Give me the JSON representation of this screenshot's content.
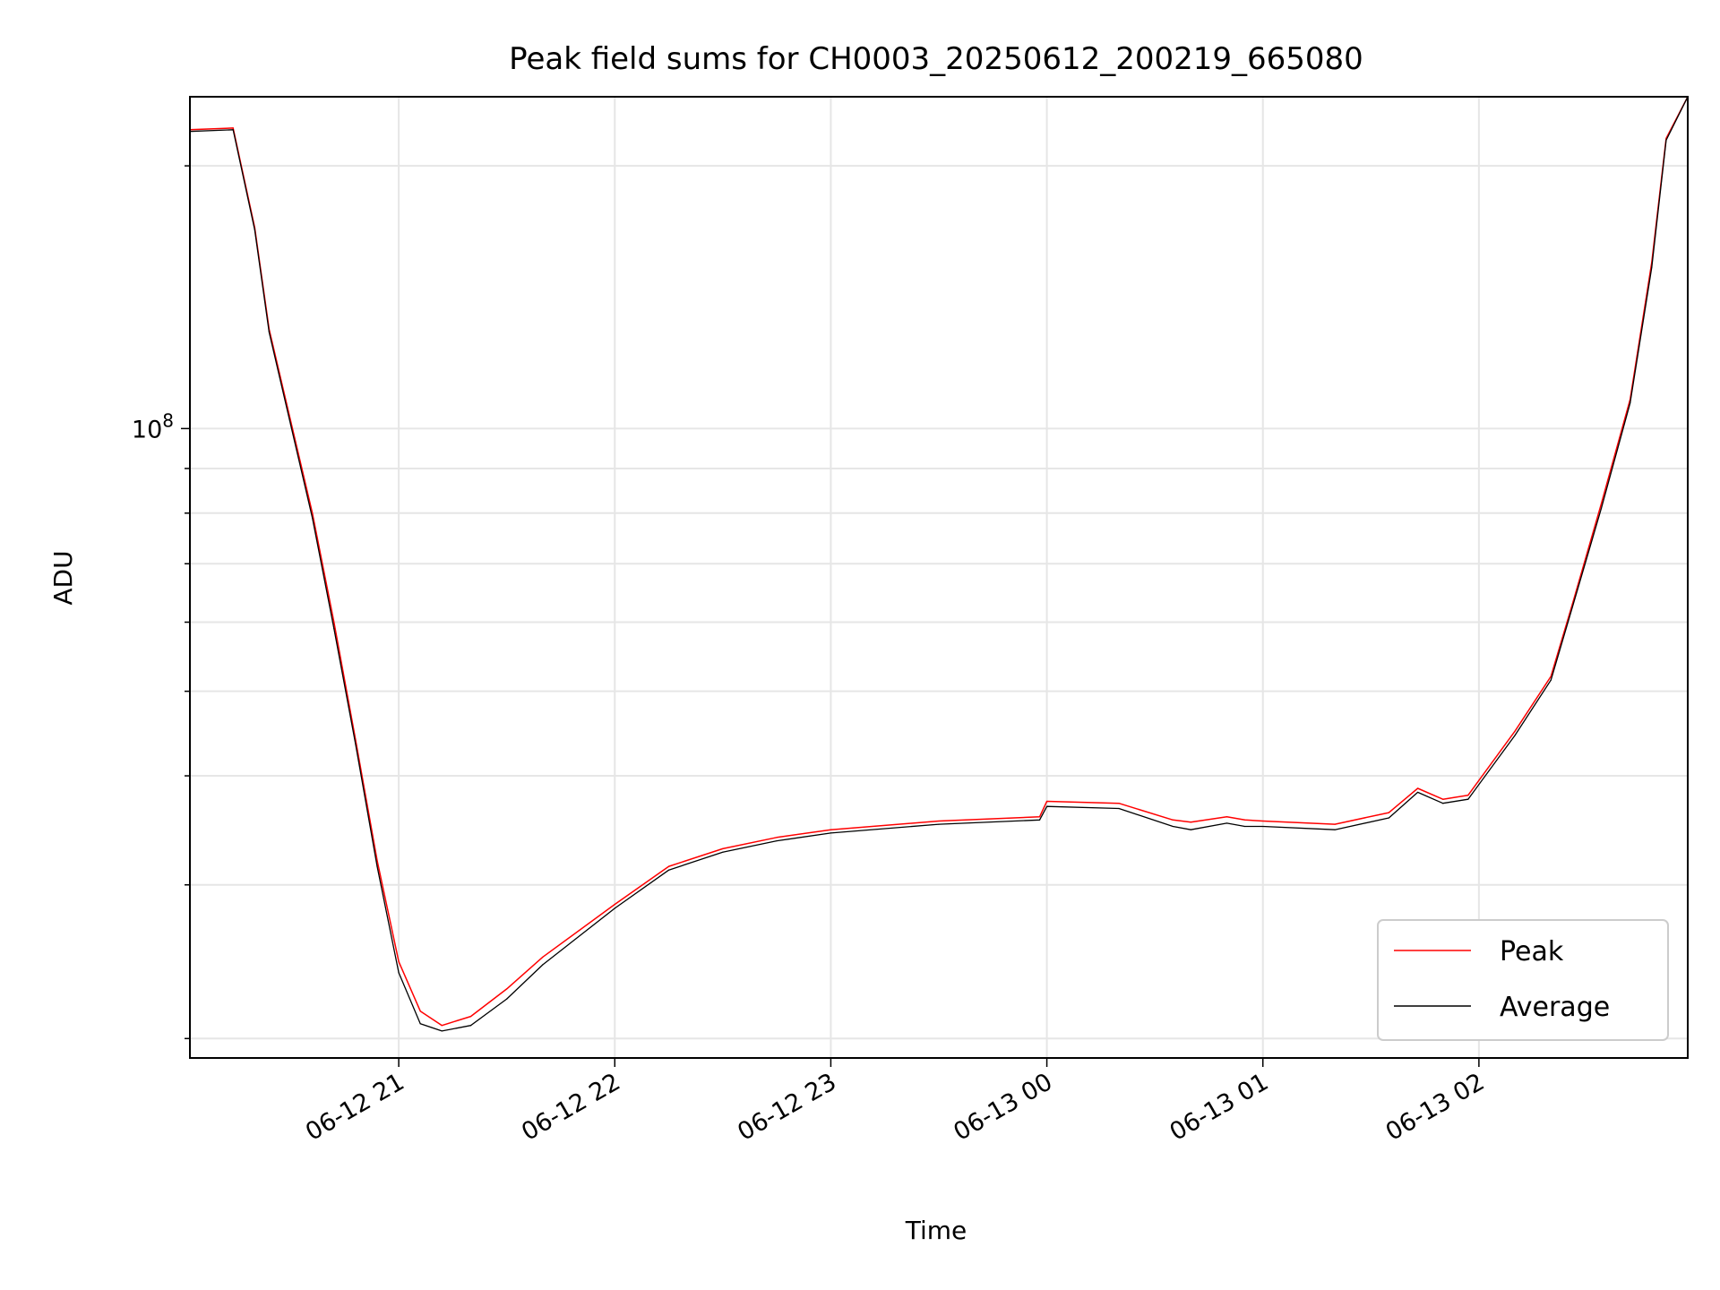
{
  "chart_data": {
    "type": "line",
    "title": "Peak field sums for CH0003_20250612_200219_665080",
    "xlabel": "Time",
    "ylabel": "ADU",
    "y_scale": "log",
    "ylim": [
      19000000,
      240000000
    ],
    "xlim": [
      "2025-06-12 20:02",
      "2025-06-13 02:58"
    ],
    "x_ticks": [
      {
        "value": "2025-06-12 21:00",
        "label": "06-12 21"
      },
      {
        "value": "2025-06-12 22:00",
        "label": "06-12 22"
      },
      {
        "value": "2025-06-12 23:00",
        "label": "06-12 23"
      },
      {
        "value": "2025-06-13 00:00",
        "label": "06-13 00"
      },
      {
        "value": "2025-06-13 01:00",
        "label": "06-13 01"
      },
      {
        "value": "2025-06-13 02:00",
        "label": "06-13 02"
      }
    ],
    "y_major_ticks": [
      {
        "value": 100000000,
        "base": "10",
        "exp": "8"
      }
    ],
    "y_minor_ticks": [
      20000000,
      30000000,
      40000000,
      50000000,
      60000000,
      70000000,
      80000000,
      90000000,
      200000000
    ],
    "grid": true,
    "legend_position": "lower right",
    "series": [
      {
        "name": "Peak",
        "color": "#ff0000",
        "x": [
          "2025-06-12 20:02",
          "2025-06-12 20:14",
          "2025-06-12 20:20",
          "2025-06-12 20:24",
          "2025-06-12 20:30",
          "2025-06-12 20:36",
          "2025-06-12 20:42",
          "2025-06-12 20:48",
          "2025-06-12 20:54",
          "2025-06-12 21:00",
          "2025-06-12 21:06",
          "2025-06-12 21:12",
          "2025-06-12 21:20",
          "2025-06-12 21:30",
          "2025-06-12 21:40",
          "2025-06-12 22:00",
          "2025-06-12 22:15",
          "2025-06-12 22:30",
          "2025-06-12 22:45",
          "2025-06-12 23:00",
          "2025-06-12 23:30",
          "2025-06-12 23:58",
          "2025-06-13 00:00",
          "2025-06-13 00:20",
          "2025-06-13 00:35",
          "2025-06-13 00:40",
          "2025-06-13 00:50",
          "2025-06-13 00:55",
          "2025-06-13 01:00",
          "2025-06-13 01:20",
          "2025-06-13 01:35",
          "2025-06-13 01:43",
          "2025-06-13 01:50",
          "2025-06-13 01:57",
          "2025-06-13 02:10",
          "2025-06-13 02:20",
          "2025-06-13 02:26",
          "2025-06-13 02:34",
          "2025-06-13 02:42",
          "2025-06-13 02:48",
          "2025-06-13 02:52",
          "2025-06-13 02:58"
        ],
        "y": [
          220000000,
          221000000,
          170000000,
          130000000,
          102000000,
          80000000,
          60000000,
          44000000,
          32000000,
          24500000,
          21500000,
          20700000,
          21200000,
          22800000,
          24800000,
          28500000,
          31500000,
          33000000,
          34000000,
          34700000,
          35500000,
          35900000,
          37400000,
          37200000,
          35600000,
          35400000,
          35900000,
          35600000,
          35500000,
          35200000,
          36300000,
          38700000,
          37600000,
          38000000,
          45000000,
          52000000,
          63000000,
          82000000,
          108000000,
          155000000,
          215000000,
          240000000
        ]
      },
      {
        "name": "Average",
        "color": "#000000",
        "x": [
          "2025-06-12 20:02",
          "2025-06-12 20:14",
          "2025-06-12 20:20",
          "2025-06-12 20:24",
          "2025-06-12 20:30",
          "2025-06-12 20:36",
          "2025-06-12 20:42",
          "2025-06-12 20:48",
          "2025-06-12 20:54",
          "2025-06-12 21:00",
          "2025-06-12 21:06",
          "2025-06-12 21:12",
          "2025-06-12 21:20",
          "2025-06-12 21:30",
          "2025-06-12 21:40",
          "2025-06-12 22:00",
          "2025-06-12 22:15",
          "2025-06-12 22:30",
          "2025-06-12 22:45",
          "2025-06-12 23:00",
          "2025-06-12 23:30",
          "2025-06-12 23:58",
          "2025-06-13 00:00",
          "2025-06-13 00:20",
          "2025-06-13 00:35",
          "2025-06-13 00:40",
          "2025-06-13 00:50",
          "2025-06-13 00:55",
          "2025-06-13 01:00",
          "2025-06-13 01:20",
          "2025-06-13 01:35",
          "2025-06-13 01:43",
          "2025-06-13 01:50",
          "2025-06-13 01:57",
          "2025-06-13 02:10",
          "2025-06-13 02:20",
          "2025-06-13 02:26",
          "2025-06-13 02:34",
          "2025-06-13 02:42",
          "2025-06-13 02:48",
          "2025-06-13 02:52",
          "2025-06-13 02:58"
        ],
        "y": [
          219000000,
          220000000,
          169000000,
          129000000,
          101000000,
          79000000,
          59000000,
          43500000,
          31500000,
          23800000,
          20800000,
          20400000,
          20700000,
          22200000,
          24300000,
          28200000,
          31200000,
          32700000,
          33700000,
          34400000,
          35200000,
          35600000,
          36900000,
          36700000,
          35000000,
          34700000,
          35300000,
          35000000,
          35000000,
          34700000,
          35800000,
          38300000,
          37200000,
          37600000,
          44500000,
          51500000,
          62500000,
          81000000,
          107000000,
          153000000,
          214000000,
          240000000
        ]
      }
    ]
  }
}
